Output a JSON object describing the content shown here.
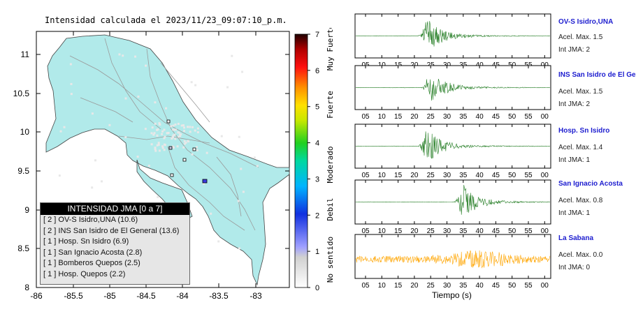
{
  "map": {
    "title": "Intensidad calculada el 2023/11/23_09:07:10_p.m.",
    "lon_ticks": [
      "-86",
      "-85.5",
      "-85",
      "-84.5",
      "-84",
      "-83.5",
      "-83"
    ],
    "lat_ticks": [
      "11",
      "10.5",
      "10",
      "9.5",
      "9",
      "8.5",
      "8"
    ],
    "land_color": "#b1eaea",
    "sea_color": "#ffffff"
  },
  "colorbar": {
    "ticks": [
      "7",
      "6",
      "5",
      "4",
      "3",
      "2",
      "1",
      "0"
    ],
    "labels": [
      "Muy Fuerte",
      "Fuerte",
      "Moderado",
      "Debil",
      "No sentido"
    ]
  },
  "legend": {
    "title": "INTENSIDAD JMA [0 a 7]",
    "items": [
      "[ 2 ]  OV-S Isidro,UNA (10.6)",
      "[ 2 ]  INS San Isidro de El General (13.6)",
      "[ 1 ]  Hosp. Sn Isidro (6.9)",
      "[ 1 ]  San Ignacio Acosta (2.8)",
      "[ 1 ]  Bomberos Quepos (2.5)",
      "[ 1 ]  Hosp. Quepos (2.2)"
    ]
  },
  "seismograms": {
    "x_ticks": [
      "05",
      "10",
      "15",
      "20",
      "25",
      "30",
      "35",
      "40",
      "45",
      "50",
      "55",
      "00"
    ],
    "xlabel": "Tiempo (s)",
    "stations": [
      {
        "name": "OV-S Isidro,UNA",
        "accel": "Acel. Max. 1.5",
        "int": "Int JMA: 2",
        "color": "#1f7a1f",
        "onset": 21,
        "peak": 24
      },
      {
        "name": "INS San Isidro de El General",
        "accel": "Acel. Max. 1.5",
        "int": "Int JMA: 2",
        "color": "#1f7a1f",
        "onset": 22,
        "peak": 25
      },
      {
        "name": "Hosp. Sn Isidro",
        "accel": "Acel. Max. 1.4",
        "int": "Int JMA: 1",
        "color": "#1f7a1f",
        "onset": 21,
        "peak": 24
      },
      {
        "name": "San Ignacio Acosta",
        "accel": "Acel. Max. 0.8",
        "int": "Int JMA: 1",
        "color": "#1f7a1f",
        "onset": 30,
        "peak": 35
      },
      {
        "name": "La Sabana",
        "accel": "Acel. Max. 0.0",
        "int": "Int JMA: 0",
        "color": "#ffa500",
        "onset": 2,
        "peak": 40
      }
    ]
  }
}
